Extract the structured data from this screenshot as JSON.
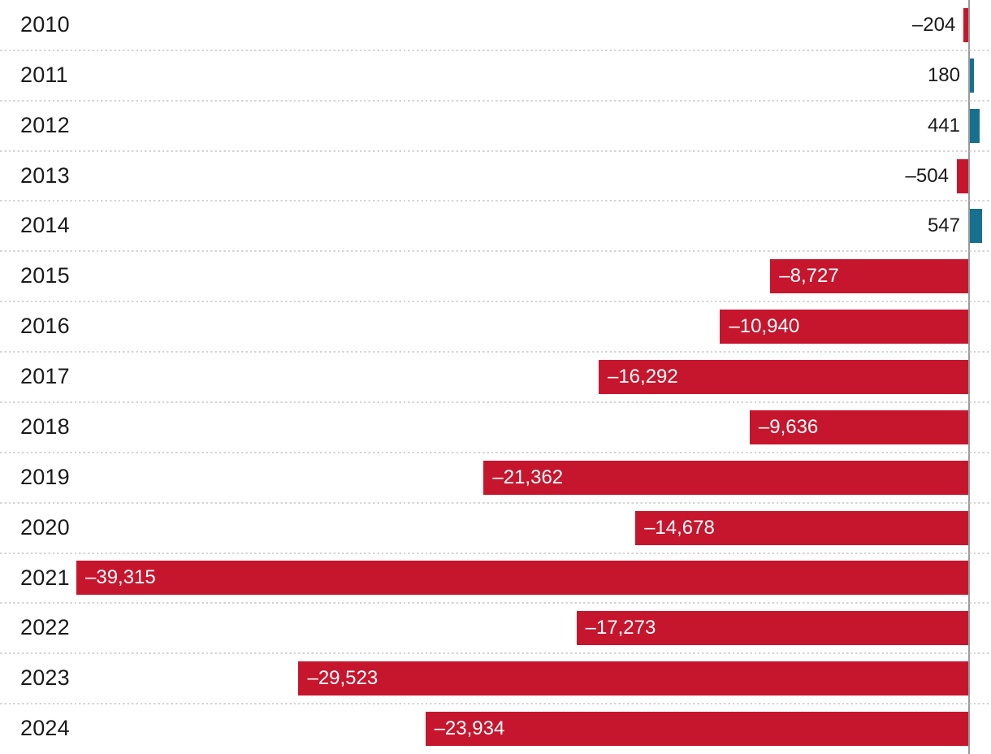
{
  "chart_data": {
    "type": "bar",
    "orientation": "horizontal",
    "title": "",
    "xlabel": "",
    "ylabel": "",
    "categories": [
      "2010",
      "2011",
      "2012",
      "2013",
      "2014",
      "2015",
      "2016",
      "2017",
      "2018",
      "2019",
      "2020",
      "2021",
      "2022",
      "2023",
      "2024"
    ],
    "values": [
      -204,
      180,
      441,
      -504,
      547,
      -8727,
      -10940,
      -16292,
      -9636,
      -21362,
      -14678,
      -39315,
      -17273,
      -29523,
      -23934
    ],
    "value_labels": [
      "–204",
      "180",
      "441",
      "–504",
      "547",
      "–8,727",
      "–10,940",
      "–16,292",
      "–9,636",
      "–21,362",
      "–14,678",
      "–39,315",
      "–17,273",
      "–29,523",
      "–23,934"
    ],
    "xlim": [
      -40200,
      1000
    ],
    "grid": "dotted horizontal row separators, zero baseline on right",
    "legend": "none",
    "colors": {
      "negative_bar": "#c6162d",
      "positive_bar": "#17708f",
      "baseline": "#9a9a9a",
      "separator": "#d5d5d5",
      "year_text": "#1a1a1a",
      "label_inside": "#ffffff",
      "label_outside": "#1a1a1a",
      "background": "#ffffff"
    }
  }
}
